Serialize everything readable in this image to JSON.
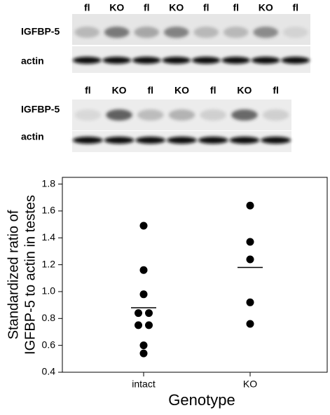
{
  "blots": [
    {
      "lanes": [
        "fl",
        "KO",
        "fl",
        "KO",
        "fl",
        "fl",
        "KO",
        "fl"
      ],
      "rows": [
        "IGFBP-5",
        "actin"
      ]
    },
    {
      "lanes": [
        "fl",
        "KO",
        "fl",
        "KO",
        "fl",
        "KO",
        "fl"
      ],
      "rows": [
        "IGFBP-5",
        "actin"
      ]
    }
  ],
  "chart_data": {
    "type": "scatter",
    "ylabel": [
      "Standardized ratio of",
      "IGFBP-5 to actin in testes"
    ],
    "xlabel": "Genotype",
    "categories": [
      "intact",
      "KO"
    ],
    "values": [
      [
        1.49,
        1.16,
        0.98,
        0.84,
        0.84,
        0.75,
        0.75,
        0.6,
        0.54
      ],
      [
        1.64,
        1.37,
        1.24,
        0.92,
        0.76
      ]
    ],
    "means": [
      0.88,
      1.18
    ],
    "color": "#000000",
    "ylim": [
      0.4,
      1.85
    ],
    "yticks": [
      0.4,
      0.6,
      0.8,
      {
        "value": 1.0,
        "label": "1.0"
      },
      1.2,
      1.4,
      1.6,
      1.8
    ]
  }
}
